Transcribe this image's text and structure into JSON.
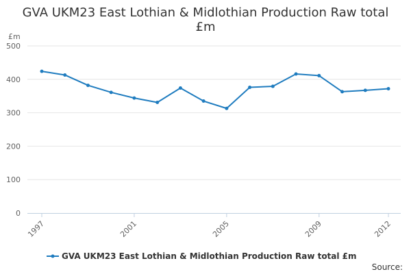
{
  "chart_data": {
    "type": "line",
    "title_lines": [
      "GVA UKM23 East Lothian & Midlothian Production Raw total",
      "£m"
    ],
    "y_unit": "£m",
    "x": [
      1997,
      1998,
      1999,
      2000,
      2001,
      2002,
      2003,
      2004,
      2005,
      2006,
      2007,
      2008,
      2009,
      2010,
      2011,
      2012
    ],
    "series": [
      {
        "name": "GVA UKM23 East Lothian & Midlothian Production Raw total £m",
        "color": "#1f7cbf",
        "values": [
          424,
          413,
          382,
          361,
          344,
          331,
          374,
          335,
          313,
          376,
          379,
          416,
          411,
          363,
          367,
          372
        ]
      }
    ],
    "ylim": [
      0,
      500
    ],
    "y_ticks": [
      "0",
      "100",
      "200",
      "300",
      "400",
      "500"
    ],
    "x_tick_labels": [
      "1997",
      "2001",
      "2005",
      "2009",
      "2012"
    ],
    "grid": true,
    "legend_position": "bottom-center"
  },
  "footer": {
    "source_label": "Source:"
  }
}
